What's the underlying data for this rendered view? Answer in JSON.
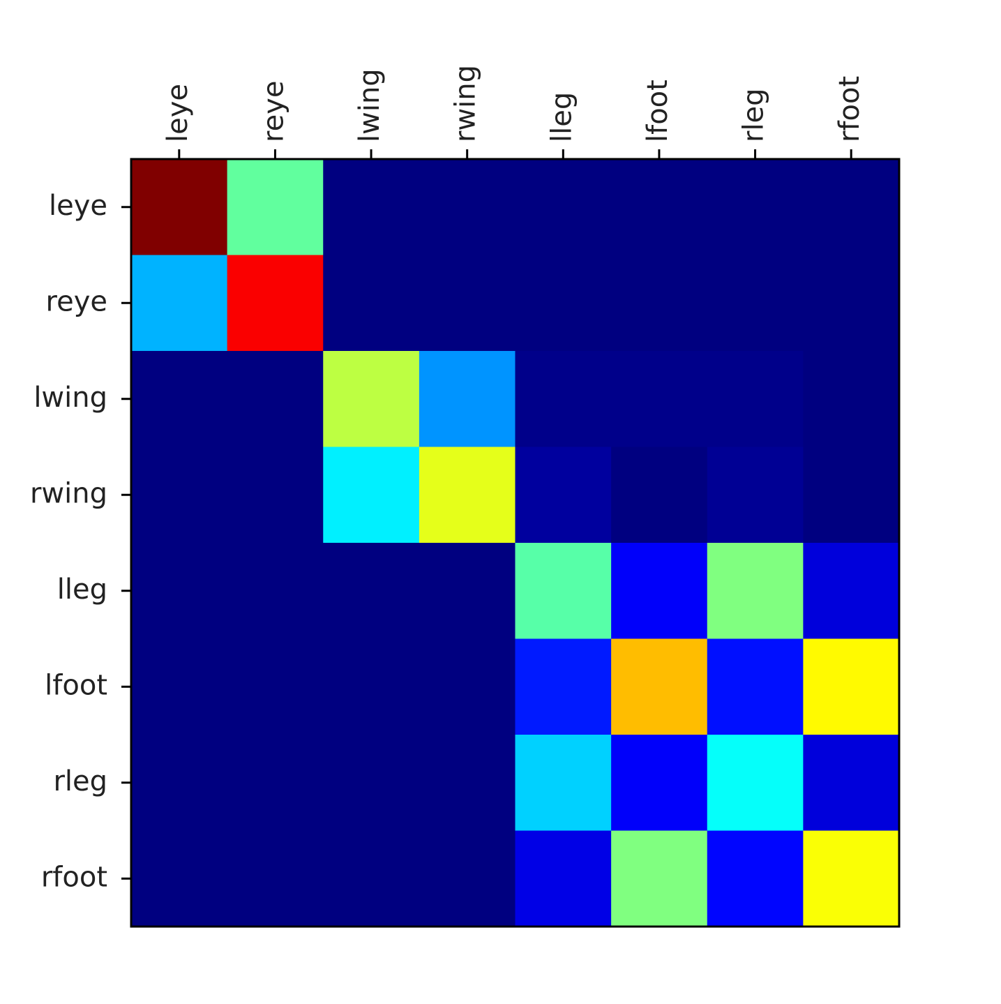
{
  "chart_data": {
    "type": "heatmap",
    "colormap": "jet",
    "x_categories": [
      "leye",
      "reye",
      "lwing",
      "rwing",
      "lleg",
      "lfoot",
      "rleg",
      "rfoot"
    ],
    "y_categories": [
      "leye",
      "reye",
      "lwing",
      "rwing",
      "lleg",
      "lfoot",
      "rleg",
      "rfoot"
    ],
    "values": [
      [
        1.0,
        0.47,
        0,
        0,
        0,
        0,
        0,
        0
      ],
      [
        0.3,
        0.88,
        0,
        0,
        0,
        0,
        0,
        0
      ],
      [
        0,
        0,
        0.56,
        0.27,
        0.01,
        0.01,
        0.01,
        0
      ],
      [
        0,
        0,
        0.36,
        0.6,
        0.03,
        0,
        0.02,
        0
      ],
      [
        0,
        0,
        0,
        0,
        0.46,
        0.12,
        0.5,
        0.09
      ],
      [
        0,
        0,
        0,
        0,
        0.15,
        0.69,
        0.14,
        0.63
      ],
      [
        0,
        0,
        0,
        0,
        0.33,
        0.12,
        0.38,
        0.09
      ],
      [
        0,
        0,
        0,
        0,
        0.1,
        0.5,
        0.13,
        0.62
      ]
    ]
  }
}
